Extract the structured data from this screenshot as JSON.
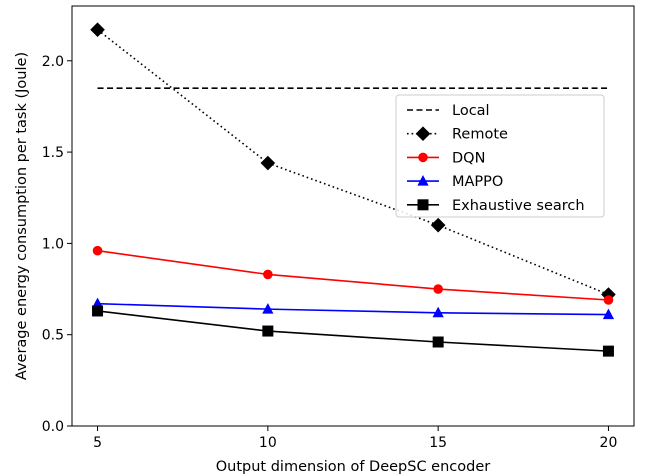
{
  "chart_data": {
    "type": "line",
    "xlabel": "Output dimension of DeepSC encoder",
    "ylabel": "Average energy consumption per task (Joule)",
    "xlim": [
      4.25,
      20.75
    ],
    "ylim": [
      0.0,
      2.3
    ],
    "xticks": [
      5,
      10,
      15,
      20
    ],
    "yticks": [
      0.0,
      0.5,
      1.0,
      1.5,
      2.0
    ],
    "xtick_labels": [
      "5",
      "10",
      "15",
      "20"
    ],
    "ytick_labels": [
      "0.0",
      "0.5",
      "1.0",
      "1.5",
      "2.0"
    ],
    "grid": false,
    "legend_position": "center-right",
    "x": [
      5,
      10,
      15,
      20
    ],
    "series": [
      {
        "name": "Local",
        "values": [
          1.85,
          1.85,
          1.85,
          1.85
        ],
        "color": "#000000",
        "linestyle": "dashed",
        "marker": "none"
      },
      {
        "name": "Remote",
        "values": [
          2.17,
          1.44,
          1.1,
          0.72
        ],
        "color": "#000000",
        "linestyle": "dotted",
        "marker": "diamond"
      },
      {
        "name": "DQN",
        "values": [
          0.96,
          0.83,
          0.75,
          0.69
        ],
        "color": "#ff0000",
        "linestyle": "solid",
        "marker": "circle"
      },
      {
        "name": "MAPPO",
        "values": [
          0.67,
          0.64,
          0.62,
          0.61
        ],
        "color": "#0000ff",
        "linestyle": "solid",
        "marker": "triangle"
      },
      {
        "name": "Exhaustive search",
        "values": [
          0.63,
          0.52,
          0.46,
          0.41
        ],
        "color": "#000000",
        "linestyle": "solid",
        "marker": "square"
      }
    ]
  }
}
